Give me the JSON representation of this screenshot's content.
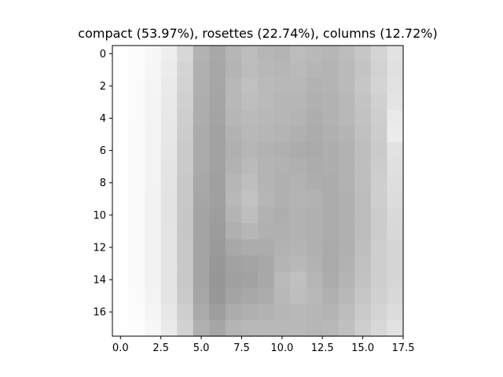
{
  "chart_data": {
    "type": "heatmap",
    "title": "compact (53.97%), rosettes (22.74%), columns (12.72%)",
    "xlabel": "",
    "ylabel": "",
    "xlim": [
      -0.5,
      17.5
    ],
    "ylim": [
      17.5,
      -0.5
    ],
    "xticks": [
      0.0,
      2.5,
      5.0,
      7.5,
      10.0,
      12.5,
      15.0,
      17.5
    ],
    "xtick_labels": [
      "0.0",
      "2.5",
      "5.0",
      "7.5",
      "10.0",
      "12.5",
      "15.0",
      "17.5"
    ],
    "yticks": [
      0,
      2,
      4,
      6,
      8,
      10,
      12,
      14,
      16
    ],
    "ytick_labels": [
      "0",
      "2",
      "4",
      "6",
      "8",
      "10",
      "12",
      "14",
      "16"
    ],
    "colormap": "gray",
    "grid": false,
    "rows": 18,
    "cols": 18,
    "gray_levels": [
      [
        255,
        252,
        247,
        238,
        215,
        178,
        168,
        182,
        188,
        182,
        180,
        188,
        185,
        182,
        188,
        198,
        212,
        226
      ],
      [
        255,
        252,
        246,
        236,
        212,
        176,
        166,
        180,
        188,
        184,
        182,
        186,
        182,
        180,
        186,
        196,
        210,
        224
      ],
      [
        255,
        251,
        245,
        234,
        210,
        175,
        166,
        184,
        192,
        186,
        184,
        184,
        178,
        180,
        186,
        198,
        212,
        226
      ],
      [
        255,
        251,
        244,
        233,
        208,
        174,
        165,
        184,
        190,
        186,
        182,
        182,
        176,
        178,
        184,
        196,
        208,
        228
      ],
      [
        255,
        251,
        244,
        232,
        206,
        173,
        164,
        182,
        186,
        184,
        182,
        180,
        174,
        178,
        184,
        194,
        206,
        234
      ],
      [
        255,
        250,
        243,
        231,
        204,
        171,
        162,
        178,
        184,
        182,
        180,
        176,
        172,
        176,
        180,
        192,
        204,
        236
      ],
      [
        255,
        250,
        243,
        230,
        202,
        170,
        162,
        176,
        182,
        178,
        176,
        172,
        170,
        174,
        178,
        190,
        202,
        226
      ],
      [
        255,
        250,
        243,
        229,
        202,
        170,
        162,
        178,
        186,
        180,
        178,
        176,
        172,
        174,
        178,
        190,
        204,
        224
      ],
      [
        255,
        250,
        243,
        228,
        200,
        168,
        160,
        182,
        190,
        180,
        176,
        178,
        174,
        172,
        178,
        190,
        206,
        222
      ],
      [
        255,
        250,
        242,
        227,
        200,
        166,
        160,
        184,
        194,
        182,
        176,
        180,
        178,
        172,
        176,
        188,
        206,
        220
      ],
      [
        255,
        250,
        242,
        227,
        198,
        164,
        158,
        180,
        190,
        178,
        174,
        178,
        176,
        172,
        176,
        188,
        204,
        218
      ],
      [
        255,
        250,
        242,
        228,
        198,
        164,
        156,
        176,
        182,
        176,
        176,
        178,
        176,
        172,
        176,
        188,
        204,
        216
      ],
      [
        255,
        250,
        242,
        228,
        200,
        164,
        154,
        168,
        172,
        172,
        178,
        180,
        176,
        170,
        176,
        190,
        206,
        214
      ],
      [
        255,
        250,
        242,
        228,
        200,
        164,
        152,
        162,
        164,
        168,
        180,
        184,
        178,
        170,
        178,
        192,
        206,
        214
      ],
      [
        255,
        250,
        242,
        228,
        200,
        164,
        150,
        160,
        162,
        168,
        186,
        192,
        182,
        172,
        180,
        194,
        206,
        214
      ],
      [
        255,
        251,
        243,
        229,
        202,
        166,
        152,
        164,
        168,
        172,
        184,
        190,
        184,
        176,
        184,
        198,
        208,
        216
      ],
      [
        255,
        252,
        245,
        231,
        206,
        170,
        158,
        172,
        176,
        178,
        182,
        184,
        182,
        180,
        188,
        202,
        212,
        220
      ],
      [
        255,
        253,
        247,
        234,
        210,
        176,
        166,
        180,
        184,
        184,
        184,
        184,
        182,
        184,
        192,
        206,
        216,
        226
      ]
    ]
  }
}
